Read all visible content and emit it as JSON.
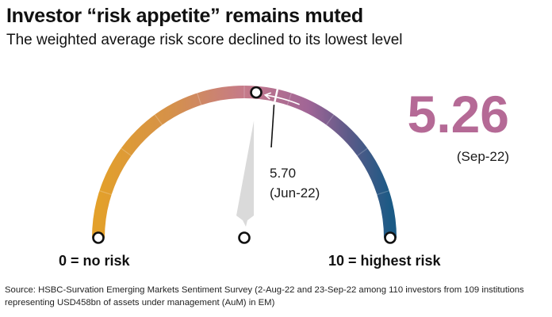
{
  "title": "Investor “risk appetite” remains muted",
  "subtitle": "The weighted average risk score declined to its lowest level",
  "chart_data": {
    "type": "gauge",
    "scale_min": 0,
    "scale_max": 10,
    "min_label": "0 = no risk",
    "max_label": "10 = highest risk",
    "current": {
      "value": 5.26,
      "label": "5.26",
      "period": "(Sep-22)"
    },
    "previous": {
      "value": 5.7,
      "label": "5.70",
      "period": "(Jun-22)"
    },
    "colors": {
      "low": "#e3a02a",
      "mid": "#c4758f",
      "high": "#1b5a85",
      "value_text": "#b56a96",
      "pointer": "#dadada",
      "marker": "#111111"
    }
  },
  "source": "Source: HSBC-Survation Emerging Markets Sentiment Survey (2-Aug-22 and 23-Sep-22 among 110 investors from 109 institutions representing USD458bn of assets under management (AuM) in EM)"
}
